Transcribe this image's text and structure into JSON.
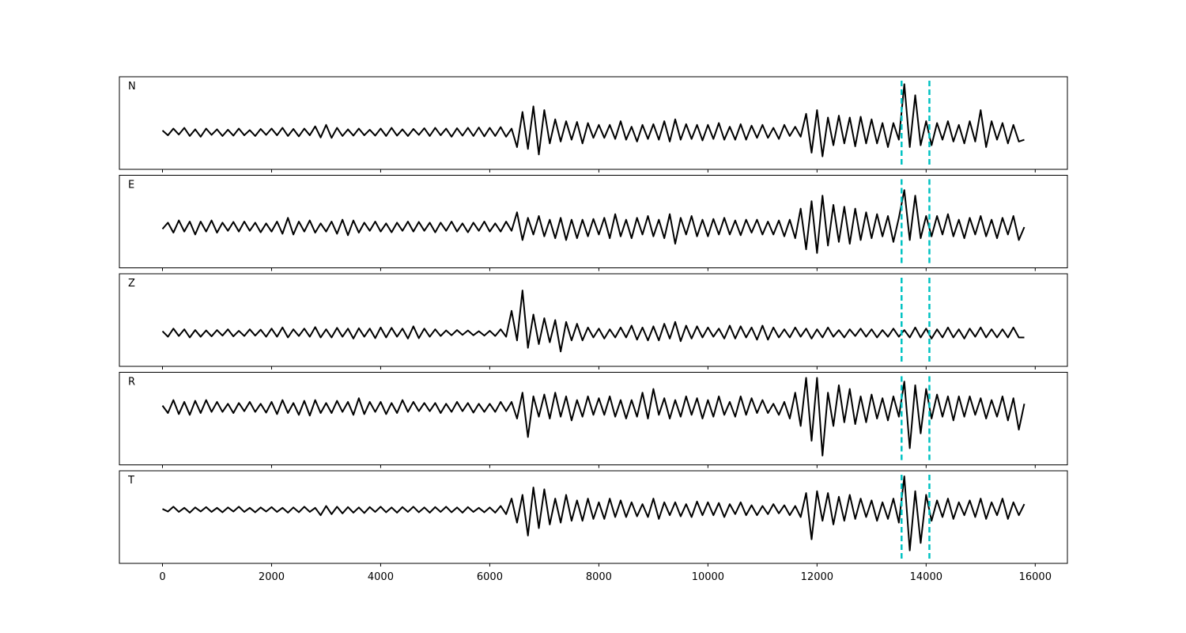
{
  "chart_data": {
    "type": "line",
    "xlim": [
      -790,
      16590
    ],
    "xticks": [
      0,
      2000,
      4000,
      6000,
      8000,
      10000,
      12000,
      14000,
      16000
    ],
    "x": [
      0,
      100,
      200,
      300,
      400,
      500,
      600,
      700,
      800,
      900,
      1000,
      1100,
      1200,
      1300,
      1400,
      1500,
      1600,
      1700,
      1800,
      1900,
      2000,
      2100,
      2200,
      2300,
      2400,
      2500,
      2600,
      2700,
      2800,
      2900,
      3000,
      3100,
      3200,
      3300,
      3400,
      3500,
      3600,
      3700,
      3800,
      3900,
      4000,
      4100,
      4200,
      4300,
      4400,
      4500,
      4600,
      4700,
      4800,
      4900,
      5000,
      5100,
      5200,
      5300,
      5400,
      5500,
      5600,
      5700,
      5800,
      5900,
      6000,
      6100,
      6200,
      6300,
      6400,
      6500,
      6600,
      6700,
      6800,
      6900,
      7000,
      7100,
      7200,
      7300,
      7400,
      7500,
      7600,
      7700,
      7800,
      7900,
      8000,
      8100,
      8200,
      8300,
      8400,
      8500,
      8600,
      8700,
      8800,
      8900,
      9000,
      9100,
      9200,
      9300,
      9400,
      9500,
      9600,
      9700,
      9800,
      9900,
      10000,
      10100,
      10200,
      10300,
      10400,
      10500,
      10600,
      10700,
      10800,
      10900,
      11000,
      11100,
      11200,
      11300,
      11400,
      11500,
      11600,
      11700,
      11800,
      11900,
      12000,
      12100,
      12200,
      12300,
      12400,
      12500,
      12600,
      12700,
      12800,
      12900,
      13000,
      13100,
      13200,
      13300,
      13400,
      13500,
      13600,
      13700,
      13800,
      13900,
      14000,
      14100,
      14200,
      14300,
      14400,
      14500,
      14600,
      14700,
      14800,
      14900,
      15000,
      15100,
      15200,
      15300,
      15400,
      15500,
      15600,
      15700,
      15800
    ],
    "markers": {
      "color": "#00c2c2",
      "values": [
        13550,
        14060
      ]
    },
    "series": [
      {
        "name": "N",
        "color": "#000000",
        "ylim": [
          -1.0,
          1.5
        ],
        "values": [
          0.05,
          -0.08,
          0.1,
          -0.06,
          0.12,
          -0.1,
          0.08,
          -0.12,
          0.1,
          -0.07,
          0.08,
          -0.1,
          0.07,
          -0.09,
          0.1,
          -0.08,
          0.06,
          -0.1,
          0.09,
          -0.07,
          0.1,
          -0.08,
          0.12,
          -0.1,
          0.09,
          -0.11,
          0.1,
          -0.08,
          0.16,
          -0.14,
          0.2,
          -0.15,
          0.12,
          -0.1,
          0.08,
          -0.09,
          0.1,
          -0.08,
          0.07,
          -0.09,
          0.1,
          -0.1,
          0.12,
          -0.09,
          0.08,
          -0.1,
          0.09,
          -0.07,
          0.11,
          -0.1,
          0.12,
          -0.08,
          0.1,
          -0.12,
          0.11,
          -0.09,
          0.12,
          -0.1,
          0.13,
          -0.11,
          0.12,
          -0.1,
          0.14,
          -0.12,
          0.1,
          -0.4,
          0.55,
          -0.45,
          0.7,
          -0.6,
          0.6,
          -0.3,
          0.35,
          -0.25,
          0.3,
          -0.2,
          0.28,
          -0.3,
          0.25,
          -0.15,
          0.2,
          -0.15,
          0.2,
          -0.18,
          0.3,
          -0.2,
          0.15,
          -0.25,
          0.2,
          -0.18,
          0.22,
          -0.2,
          0.3,
          -0.25,
          0.35,
          -0.2,
          0.22,
          -0.18,
          0.2,
          -0.22,
          0.2,
          -0.18,
          0.25,
          -0.2,
          0.15,
          -0.2,
          0.22,
          -0.2,
          0.18,
          -0.15,
          0.2,
          -0.15,
          0.12,
          -0.18,
          0.2,
          -0.1,
          0.15,
          -0.12,
          0.5,
          -0.55,
          0.6,
          -0.65,
          0.4,
          -0.35,
          0.45,
          -0.3,
          0.4,
          -0.38,
          0.42,
          -0.3,
          0.35,
          -0.3,
          0.25,
          -0.4,
          0.25,
          -0.2,
          1.3,
          -0.4,
          1.0,
          -0.35,
          0.3,
          -0.35,
          0.25,
          -0.2,
          0.3,
          -0.25,
          0.2,
          -0.3,
          0.3,
          -0.25,
          0.6,
          -0.4,
          0.3,
          -0.2,
          0.25,
          -0.3,
          0.2,
          -0.25,
          -0.2
        ]
      },
      {
        "name": "E",
        "color": "#000000",
        "ylim": [
          -1.1,
          1.4
        ],
        "values": [
          -0.05,
          0.12,
          -0.15,
          0.18,
          -0.12,
          0.15,
          -0.2,
          0.15,
          -0.12,
          0.18,
          -0.15,
          0.12,
          -0.1,
          0.14,
          -0.12,
          0.15,
          -0.1,
          0.12,
          -0.14,
          0.1,
          -0.12,
          0.15,
          -0.18,
          0.25,
          -0.2,
          0.15,
          -0.12,
          0.18,
          -0.15,
          0.1,
          -0.12,
          0.15,
          -0.18,
          0.2,
          -0.22,
          0.18,
          -0.15,
          0.12,
          -0.1,
          0.15,
          -0.12,
          0.1,
          -0.14,
          0.12,
          -0.1,
          0.15,
          -0.12,
          0.14,
          -0.1,
          0.12,
          -0.14,
          0.12,
          -0.1,
          0.15,
          -0.12,
          0.1,
          -0.14,
          0.12,
          -0.1,
          0.15,
          -0.12,
          0.1,
          -0.12,
          0.15,
          -0.1,
          0.4,
          -0.35,
          0.25,
          -0.2,
          0.3,
          -0.25,
          0.2,
          -0.3,
          0.25,
          -0.35,
          0.2,
          -0.3,
          0.2,
          -0.25,
          0.22,
          -0.2,
          0.25,
          -0.3,
          0.35,
          -0.25,
          0.2,
          -0.3,
          0.25,
          -0.2,
          0.3,
          -0.25,
          0.2,
          -0.3,
          0.35,
          -0.45,
          0.25,
          -0.2,
          0.3,
          -0.25,
          0.2,
          -0.25,
          0.22,
          -0.2,
          0.25,
          -0.2,
          0.18,
          -0.22,
          0.2,
          -0.15,
          0.2,
          -0.2,
          0.15,
          -0.2,
          0.18,
          -0.25,
          0.2,
          -0.3,
          0.5,
          -0.6,
          0.7,
          -0.7,
          0.85,
          -0.5,
          0.6,
          -0.4,
          0.55,
          -0.45,
          0.5,
          -0.35,
          0.4,
          -0.3,
          0.35,
          -0.25,
          0.3,
          -0.4,
          0.25,
          1.0,
          -0.35,
          0.85,
          -0.3,
          0.3,
          -0.25,
          0.3,
          -0.2,
          0.35,
          -0.25,
          0.2,
          -0.3,
          0.25,
          -0.2,
          0.3,
          -0.25,
          0.2,
          -0.3,
          0.25,
          -0.2,
          0.3,
          -0.35,
          0.0
        ]
      },
      {
        "name": "Z",
        "color": "#000000",
        "ylim": [
          -0.9,
          1.6
        ],
        "values": [
          0.05,
          -0.1,
          0.12,
          -0.08,
          0.1,
          -0.12,
          0.08,
          -0.1,
          0.07,
          -0.09,
          0.08,
          -0.07,
          0.1,
          -0.09,
          0.06,
          -0.08,
          0.1,
          -0.07,
          0.09,
          -0.1,
          0.12,
          -0.1,
          0.15,
          -0.12,
          0.1,
          -0.08,
          0.12,
          -0.1,
          0.16,
          -0.12,
          0.1,
          -0.12,
          0.14,
          -0.1,
          0.12,
          -0.15,
          0.13,
          -0.1,
          0.12,
          -0.14,
          0.15,
          -0.12,
          0.14,
          -0.1,
          0.12,
          -0.15,
          0.18,
          -0.14,
          0.12,
          -0.1,
          0.1,
          -0.08,
          0.07,
          -0.06,
          0.08,
          -0.05,
          0.07,
          -0.06,
          0.05,
          -0.07,
          0.06,
          -0.08,
          0.1,
          -0.1,
          0.6,
          -0.2,
          1.15,
          -0.4,
          0.5,
          -0.3,
          0.4,
          -0.25,
          0.35,
          -0.5,
          0.3,
          -0.2,
          0.25,
          -0.2,
          0.15,
          -0.12,
          0.12,
          -0.15,
          0.1,
          -0.12,
          0.15,
          -0.12,
          0.2,
          -0.18,
          0.15,
          -0.2,
          0.18,
          -0.2,
          0.25,
          -0.15,
          0.3,
          -0.22,
          0.2,
          -0.15,
          0.18,
          -0.12,
          0.15,
          -0.1,
          0.12,
          -0.15,
          0.2,
          -0.15,
          0.18,
          -0.12,
          0.15,
          -0.18,
          0.2,
          -0.18,
          0.15,
          -0.12,
          0.1,
          -0.12,
          0.15,
          -0.1,
          0.12,
          -0.15,
          0.1,
          -0.12,
          0.15,
          -0.1,
          0.08,
          -0.12,
          0.1,
          -0.08,
          0.12,
          -0.1,
          0.1,
          -0.12,
          0.08,
          -0.1,
          0.12,
          -0.1,
          0.08,
          -0.12,
          0.15,
          -0.12,
          0.12,
          -0.15,
          0.1,
          -0.12,
          0.15,
          -0.12,
          0.1,
          -0.15,
          0.12,
          -0.1,
          0.15,
          -0.12,
          0.1,
          -0.12,
          0.1,
          -0.12,
          0.15,
          -0.12,
          -0.12
        ]
      },
      {
        "name": "R",
        "color": "#000000",
        "ylim": [
          -1.55,
          0.95
        ],
        "values": [
          0.05,
          -0.15,
          0.2,
          -0.18,
          0.15,
          -0.2,
          0.18,
          -0.15,
          0.2,
          -0.12,
          0.15,
          -0.12,
          0.1,
          -0.15,
          0.12,
          -0.1,
          0.15,
          -0.12,
          0.1,
          -0.14,
          0.15,
          -0.18,
          0.2,
          -0.15,
          0.12,
          -0.2,
          0.18,
          -0.22,
          0.2,
          -0.15,
          0.12,
          -0.15,
          0.18,
          -0.12,
          0.15,
          -0.2,
          0.25,
          -0.18,
          0.15,
          -0.12,
          0.15,
          -0.18,
          0.12,
          -0.15,
          0.2,
          -0.12,
          0.15,
          -0.1,
          0.12,
          -0.1,
          0.12,
          -0.15,
          0.1,
          -0.12,
          0.15,
          -0.1,
          0.12,
          -0.14,
          0.1,
          -0.12,
          0.1,
          -0.12,
          0.15,
          -0.1,
          0.15,
          -0.3,
          0.4,
          -0.8,
          0.3,
          -0.25,
          0.35,
          -0.3,
          0.4,
          -0.25,
          0.3,
          -0.35,
          0.2,
          -0.25,
          0.3,
          -0.2,
          0.25,
          -0.2,
          0.3,
          -0.25,
          0.2,
          -0.3,
          0.2,
          -0.25,
          0.4,
          -0.3,
          0.5,
          -0.2,
          0.25,
          -0.3,
          0.2,
          -0.25,
          0.3,
          -0.2,
          0.25,
          -0.3,
          0.2,
          -0.25,
          0.3,
          -0.2,
          0.15,
          -0.25,
          0.3,
          -0.2,
          0.25,
          -0.15,
          0.2,
          -0.15,
          0.1,
          -0.2,
          0.15,
          -0.3,
          0.4,
          -0.5,
          0.8,
          -0.9,
          0.8,
          -1.3,
          0.4,
          -0.5,
          0.6,
          -0.4,
          0.5,
          -0.45,
          0.3,
          -0.4,
          0.35,
          -0.3,
          0.25,
          -0.35,
          0.3,
          -0.25,
          0.7,
          -1.1,
          0.6,
          -0.7,
          0.5,
          -0.3,
          0.35,
          -0.25,
          0.3,
          -0.35,
          0.3,
          -0.25,
          0.3,
          -0.2,
          0.25,
          -0.3,
          0.2,
          -0.25,
          0.3,
          -0.35,
          0.25,
          -0.6,
          0.1
        ]
      },
      {
        "name": "T",
        "color": "#000000",
        "ylim": [
          -1.45,
          1.05
        ],
        "values": [
          0.02,
          -0.05,
          0.08,
          -0.06,
          0.05,
          -0.08,
          0.06,
          -0.05,
          0.07,
          -0.06,
          0.05,
          -0.07,
          0.06,
          -0.05,
          0.08,
          -0.06,
          0.05,
          -0.07,
          0.06,
          -0.05,
          0.07,
          -0.06,
          0.05,
          -0.08,
          0.06,
          -0.07,
          0.08,
          -0.06,
          0.05,
          -0.15,
          0.1,
          -0.12,
          0.08,
          -0.1,
          0.07,
          -0.08,
          0.06,
          -0.09,
          0.07,
          -0.06,
          0.08,
          -0.07,
          0.06,
          -0.08,
          0.07,
          -0.06,
          0.08,
          -0.07,
          0.06,
          -0.08,
          0.07,
          -0.06,
          0.08,
          -0.07,
          0.06,
          -0.08,
          0.07,
          -0.06,
          0.05,
          -0.07,
          0.06,
          -0.08,
          0.1,
          -0.12,
          0.3,
          -0.35,
          0.4,
          -0.7,
          0.6,
          -0.5,
          0.55,
          -0.4,
          0.3,
          -0.35,
          0.4,
          -0.3,
          0.25,
          -0.3,
          0.3,
          -0.25,
          0.2,
          -0.25,
          0.3,
          -0.2,
          0.25,
          -0.2,
          0.2,
          -0.18,
          0.15,
          -0.2,
          0.3,
          -0.25,
          0.2,
          -0.15,
          0.2,
          -0.18,
          0.15,
          -0.2,
          0.22,
          -0.15,
          0.2,
          -0.15,
          0.18,
          -0.2,
          0.15,
          -0.12,
          0.2,
          -0.15,
          0.12,
          -0.15,
          0.1,
          -0.12,
          0.15,
          -0.1,
          0.12,
          -0.15,
          0.1,
          -0.2,
          0.45,
          -0.8,
          0.5,
          -0.3,
          0.45,
          -0.4,
          0.35,
          -0.3,
          0.4,
          -0.25,
          0.3,
          -0.2,
          0.25,
          -0.3,
          0.2,
          -0.25,
          0.3,
          -0.35,
          0.9,
          -1.1,
          0.5,
          -0.9,
          0.4,
          -0.3,
          0.25,
          -0.2,
          0.3,
          -0.25,
          0.2,
          -0.15,
          0.25,
          -0.2,
          0.3,
          -0.25,
          0.2,
          -0.15,
          0.3,
          -0.25,
          0.2,
          -0.15,
          0.15
        ]
      }
    ]
  }
}
